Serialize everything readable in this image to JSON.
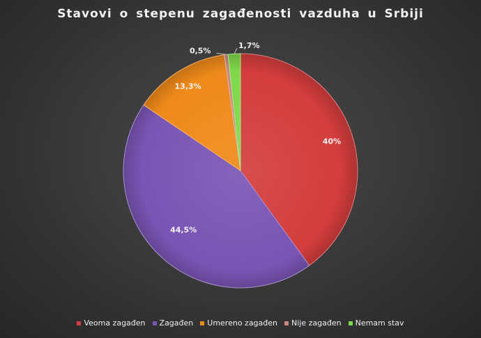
{
  "chart_data": {
    "type": "pie",
    "title": "Stavovi o stepenu zagađenosti vazduha u Srbiji",
    "categories": [
      "Veoma zagađen",
      "Zagađen",
      "Umereno zagađen",
      "Nije zagađen",
      "Nemam stav"
    ],
    "values": [
      40,
      44.5,
      13.3,
      0.5,
      1.7
    ],
    "labels": [
      "40%",
      "44,5%",
      "13,3%",
      "0,5%",
      "1,7%"
    ],
    "colors": [
      "#d43d3d",
      "#7a55b5",
      "#ef8a1a",
      "#c98a86",
      "#7fd84a"
    ],
    "legend_position": "bottom"
  }
}
